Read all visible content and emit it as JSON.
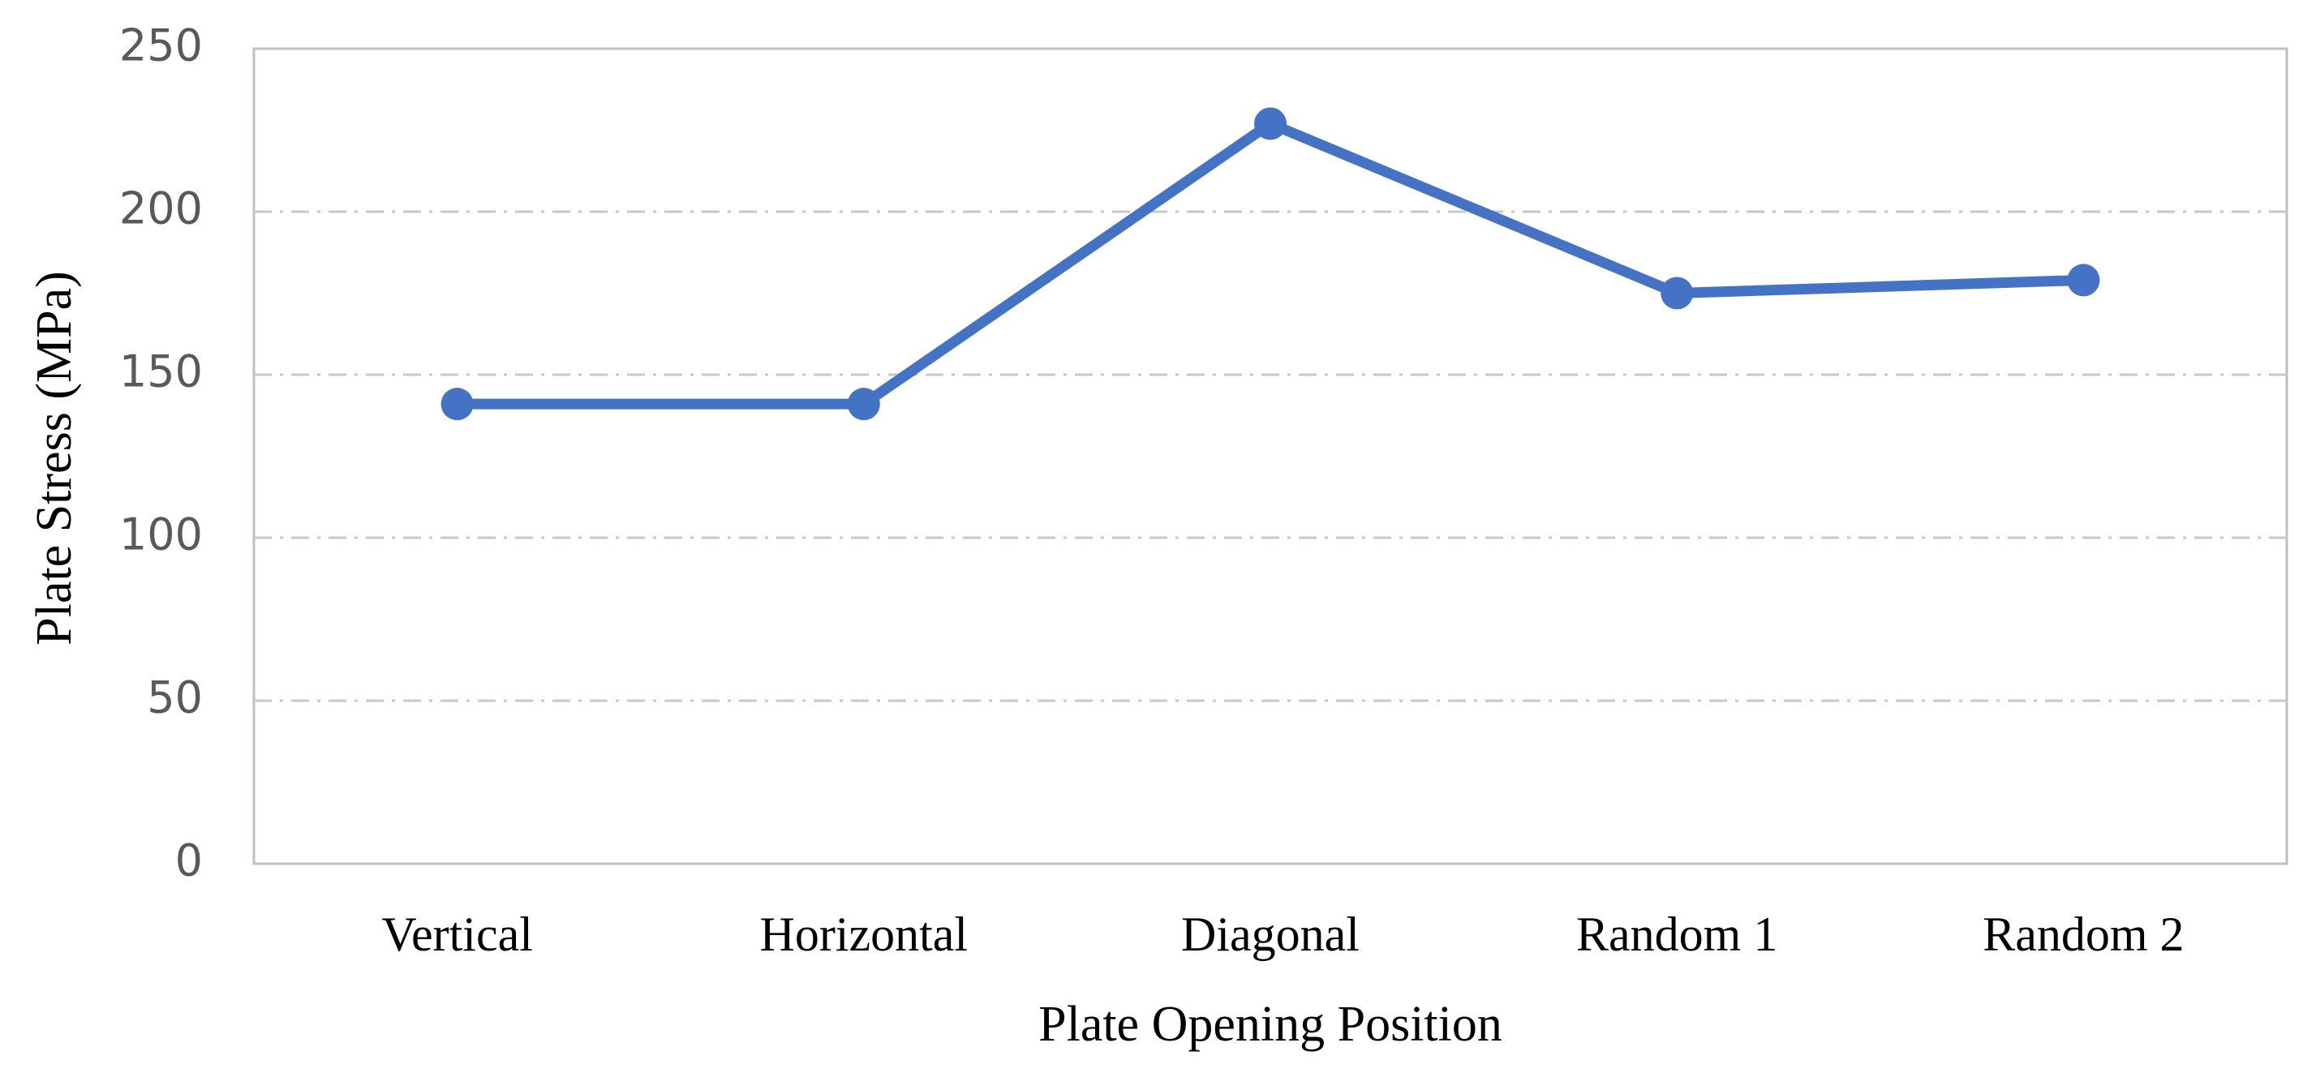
{
  "chart_data": {
    "type": "line",
    "x_label": "Plate Opening Position",
    "y_label": "Plate Stress (MPa)",
    "categories": [
      "Vertical",
      "Horizontal",
      "Diagonal",
      "Random 1",
      "Random 2"
    ],
    "series": [
      {
        "name": "Plate Stress",
        "color": "#4472c4",
        "values": [
          141,
          141,
          227,
          175,
          179
        ]
      }
    ],
    "ylim": [
      0,
      250
    ],
    "yticks": [
      0,
      50,
      100,
      150,
      200,
      250
    ],
    "grid": true
  }
}
